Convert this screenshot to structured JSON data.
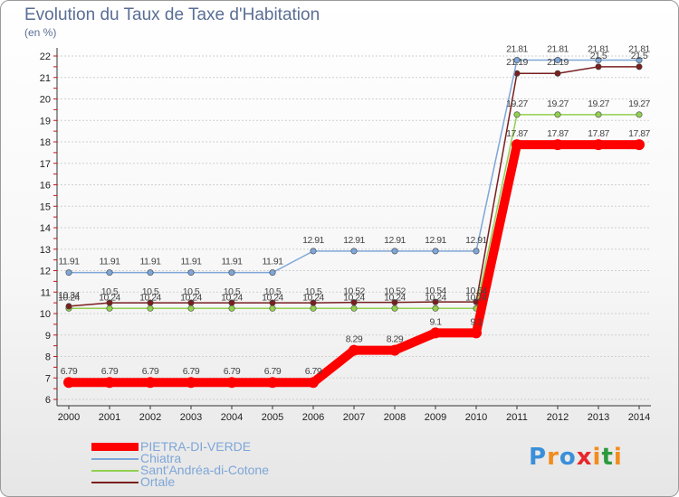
{
  "header": {
    "title": "Evolution du Taux de Taxe d'Habitation",
    "unit": "(en %)"
  },
  "brand": {
    "name": "Proxiti",
    "letters": [
      "P",
      "r",
      "o",
      "x",
      "i",
      "t",
      "i"
    ],
    "letter_colors": [
      "#3a8fd9",
      "#f28c1e",
      "#3a8fd9",
      "#e8262b",
      "#f28c1e",
      "#2d9a3e",
      "#f28c1e"
    ]
  },
  "chart_data": {
    "type": "line",
    "xlabel": "",
    "ylabel": "",
    "ylim": [
      6,
      22
    ],
    "yticks": [
      6,
      7,
      8,
      9,
      10,
      11,
      12,
      13,
      14,
      15,
      16,
      17,
      18,
      19,
      20,
      21,
      22
    ],
    "x": [
      2000,
      2001,
      2002,
      2003,
      2004,
      2005,
      2006,
      2007,
      2008,
      2009,
      2010,
      2011,
      2012,
      2013,
      2014
    ],
    "grid": "horizontal, dashed",
    "legend_position": "bottom-left",
    "series": [
      {
        "name": "Sant'Andréa-di-Cotone",
        "color": "#92d050",
        "values": [
          10.24,
          10.24,
          10.24,
          10.24,
          10.24,
          10.24,
          10.24,
          10.24,
          10.24,
          10.24,
          10.24,
          19.27,
          19.27,
          19.27,
          19.27
        ],
        "labels": [
          "10.24",
          "10.24",
          "10.24",
          "10.24",
          "10.24",
          "10.24",
          "10.24",
          "10.24",
          "10.24",
          "10.24",
          "10.24",
          "19.27",
          "19.27",
          "19.27",
          "19.27"
        ]
      },
      {
        "name": "Ortale",
        "color": "#7a1f1f",
        "values": [
          10.34,
          10.5,
          10.5,
          10.5,
          10.5,
          10.5,
          10.5,
          10.52,
          10.52,
          10.54,
          10.54,
          21.19,
          21.19,
          21.5,
          21.5
        ],
        "labels": [
          "10.34",
          "10.5",
          "10.5",
          "10.5",
          "10.5",
          "10.5",
          "10.5",
          "10.52",
          "10.52",
          "10.54",
          "10.54",
          "21.19",
          "21.19",
          "21.5",
          "21.5"
        ]
      },
      {
        "name": "Chiatra",
        "color": "#7ea6d8",
        "values": [
          11.91,
          11.91,
          11.91,
          11.91,
          11.91,
          11.91,
          12.91,
          12.91,
          12.91,
          12.91,
          12.91,
          21.81,
          21.81,
          21.81,
          21.81
        ],
        "labels": [
          "11.91",
          "11.91",
          "11.91",
          "11.91",
          "11.91",
          "11.91",
          "12.91",
          "12.91",
          "12.91",
          "12.91",
          "12.91",
          "21.81",
          "21.81",
          "21.81",
          "21.81"
        ]
      },
      {
        "name": "PIETRA-DI-VERDE",
        "color": "#ff0000",
        "values": [
          6.79,
          6.79,
          6.79,
          6.79,
          6.79,
          6.79,
          6.79,
          8.29,
          8.29,
          9.1,
          9.1,
          17.87,
          17.87,
          17.87,
          17.87
        ],
        "labels": [
          "6.79",
          "6.79",
          "6.79",
          "6.79",
          "6.79",
          "6.79",
          "6.79",
          "8.29",
          "8.29",
          "9.1",
          "9.1",
          "17.87",
          "17.87",
          "17.87",
          "17.87"
        ]
      }
    ],
    "legend_order": [
      "PIETRA-DI-VERDE",
      "Chiatra",
      "Sant'Andréa-di-Cotone",
      "Ortale"
    ]
  }
}
